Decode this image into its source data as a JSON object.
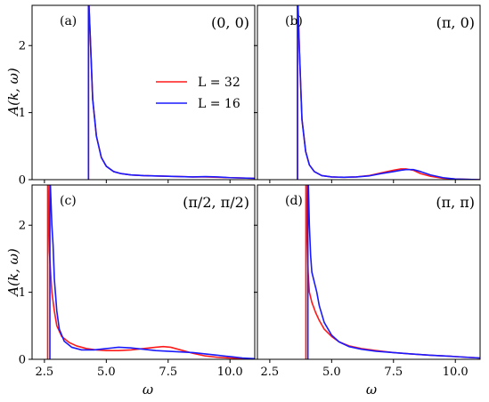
{
  "figure": {
    "ylabel": "A(k, ω)",
    "xlabel": "ω"
  },
  "legend": [
    {
      "name": "L = 32",
      "color": "#ff1a1a"
    },
    {
      "name": "L = 16",
      "color": "#1a1aff"
    }
  ],
  "chart_data": [
    {
      "type": "line",
      "panel": "(a)",
      "momentum": "(0, 0)",
      "xlim": [
        2.0,
        11.0
      ],
      "ylim": [
        0,
        2.6
      ],
      "xticks": [
        "2.5",
        "5.0",
        "7.5",
        "10.0"
      ],
      "yticks": [
        "0",
        "1",
        "2"
      ],
      "legend_position": "center-right",
      "series": [
        {
          "name": "L = 32",
          "x": [
            4.28,
            4.3,
            4.35,
            4.45,
            4.6,
            4.8,
            5.0,
            5.3,
            5.6,
            6.0,
            6.5,
            7.0,
            7.5,
            8.0,
            8.5,
            9.0,
            9.5,
            10.0,
            10.5,
            11.0
          ],
          "y": [
            2.6,
            2.6,
            2.15,
            1.2,
            0.65,
            0.33,
            0.2,
            0.12,
            0.09,
            0.07,
            0.06,
            0.055,
            0.05,
            0.045,
            0.04,
            0.04,
            0.035,
            0.03,
            0.025,
            0.02
          ]
        },
        {
          "name": "L = 16",
          "x": [
            4.28,
            4.3,
            4.35,
            4.45,
            4.6,
            4.8,
            5.0,
            5.3,
            5.6,
            6.0,
            6.5,
            7.0,
            7.5,
            8.0,
            8.5,
            9.0,
            9.5,
            10.0,
            10.5,
            11.0
          ],
          "y": [
            2.6,
            2.6,
            2.15,
            1.2,
            0.65,
            0.33,
            0.2,
            0.12,
            0.09,
            0.07,
            0.06,
            0.055,
            0.05,
            0.045,
            0.04,
            0.045,
            0.04,
            0.03,
            0.025,
            0.02
          ]
        }
      ]
    },
    {
      "type": "line",
      "panel": "(b)",
      "momentum": "(π, 0)",
      "xlim": [
        2.0,
        11.0
      ],
      "ylim": [
        0,
        2.6
      ],
      "xticks": [
        "2.5",
        "5.0",
        "7.5",
        "10.0"
      ],
      "yticks": [
        "0",
        "1",
        "2"
      ],
      "series": [
        {
          "name": "L = 32",
          "x": [
            3.62,
            3.64,
            3.7,
            3.8,
            3.95,
            4.1,
            4.3,
            4.6,
            5.0,
            5.5,
            6.0,
            6.5,
            7.0,
            7.5,
            7.8,
            8.0,
            8.3,
            8.6,
            9.0,
            9.5,
            10.0,
            10.5,
            11.0
          ],
          "y": [
            2.6,
            2.6,
            1.9,
            0.9,
            0.42,
            0.22,
            0.12,
            0.06,
            0.04,
            0.035,
            0.04,
            0.06,
            0.1,
            0.14,
            0.16,
            0.16,
            0.14,
            0.09,
            0.05,
            0.02,
            0.01,
            0.005,
            0.0
          ]
        },
        {
          "name": "L = 16",
          "x": [
            3.62,
            3.64,
            3.7,
            3.8,
            3.95,
            4.1,
            4.3,
            4.6,
            5.0,
            5.5,
            6.0,
            6.5,
            7.0,
            7.5,
            7.8,
            8.0,
            8.3,
            8.6,
            9.0,
            9.5,
            10.0,
            10.5,
            11.0
          ],
          "y": [
            2.6,
            2.6,
            1.9,
            0.9,
            0.42,
            0.22,
            0.12,
            0.06,
            0.04,
            0.035,
            0.04,
            0.055,
            0.09,
            0.12,
            0.14,
            0.15,
            0.15,
            0.12,
            0.07,
            0.03,
            0.01,
            0.005,
            0.0
          ]
        }
      ]
    },
    {
      "type": "line",
      "panel": "(c)",
      "momentum": "(π/2, π/2)",
      "xlim": [
        2.0,
        11.0
      ],
      "ylim": [
        0,
        2.6
      ],
      "xticks": [
        "2.5",
        "5.0",
        "7.5",
        "10.0"
      ],
      "yticks": [
        "0",
        "1",
        "2"
      ],
      "series": [
        {
          "name": "L = 32",
          "x": [
            2.63,
            2.65,
            2.7,
            2.8,
            2.9,
            3.0,
            3.2,
            3.5,
            3.8,
            4.2,
            4.6,
            5.0,
            5.5,
            6.0,
            6.5,
            7.0,
            7.3,
            7.6,
            8.0,
            8.5,
            9.0,
            9.5,
            10.0,
            10.5,
            11.0
          ],
          "y": [
            2.6,
            2.6,
            1.6,
            1.0,
            0.72,
            0.5,
            0.34,
            0.25,
            0.2,
            0.16,
            0.14,
            0.13,
            0.13,
            0.14,
            0.16,
            0.18,
            0.19,
            0.18,
            0.14,
            0.09,
            0.05,
            0.03,
            0.02,
            0.01,
            0.005
          ]
        },
        {
          "name": "L = 16",
          "x": [
            2.72,
            2.74,
            2.8,
            2.85,
            2.9,
            3.0,
            3.1,
            3.3,
            3.6,
            4.0,
            4.5,
            5.0,
            5.5,
            6.0,
            6.5,
            7.0,
            7.5,
            8.0,
            8.5,
            9.0,
            9.5,
            10.0,
            10.5,
            11.0
          ],
          "y": [
            2.6,
            2.6,
            2.0,
            1.7,
            1.2,
            0.72,
            0.45,
            0.27,
            0.18,
            0.14,
            0.14,
            0.16,
            0.18,
            0.17,
            0.15,
            0.13,
            0.12,
            0.11,
            0.1,
            0.08,
            0.06,
            0.04,
            0.02,
            0.01
          ]
        }
      ]
    },
    {
      "type": "line",
      "panel": "(d)",
      "momentum": "(π, π)",
      "xlim": [
        2.0,
        11.0
      ],
      "ylim": [
        0,
        2.6
      ],
      "xticks": [
        "2.5",
        "5.0",
        "7.5",
        "10.0"
      ],
      "yticks": [
        "0",
        "1",
        "2"
      ],
      "series": [
        {
          "name": "L = 32",
          "x": [
            3.96,
            3.98,
            4.0,
            4.05,
            4.1,
            4.2,
            4.35,
            4.5,
            4.7,
            5.0,
            5.3,
            5.7,
            6.2,
            6.8,
            7.5,
            8.2,
            9.0,
            9.8,
            10.5,
            11.0
          ],
          "y": [
            2.6,
            2.6,
            2.0,
            1.3,
            1.0,
            0.85,
            0.7,
            0.58,
            0.45,
            0.34,
            0.26,
            0.2,
            0.16,
            0.13,
            0.1,
            0.08,
            0.06,
            0.045,
            0.03,
            0.02
          ]
        },
        {
          "name": "L = 16",
          "x": [
            4.04,
            4.06,
            4.1,
            4.15,
            4.2,
            4.3,
            4.4,
            4.5,
            4.7,
            5.0,
            5.3,
            5.7,
            6.2,
            6.8,
            7.5,
            8.2,
            9.0,
            9.8,
            10.5,
            11.0
          ],
          "y": [
            2.6,
            2.6,
            2.0,
            1.55,
            1.3,
            1.15,
            1.0,
            0.8,
            0.55,
            0.36,
            0.26,
            0.19,
            0.15,
            0.12,
            0.1,
            0.08,
            0.06,
            0.045,
            0.03,
            0.02
          ]
        }
      ]
    }
  ]
}
